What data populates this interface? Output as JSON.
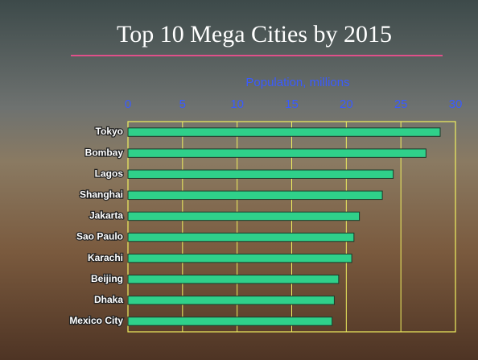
{
  "chart_data": {
    "type": "hbar",
    "title": "Top 10 Mega Cities by 2015",
    "x_label": "Population, millions",
    "categories": [
      "Tokyo",
      "Bombay",
      "Lagos",
      "Shanghai",
      "Jakarta",
      "Sao Paulo",
      "Karachi",
      "Beijing",
      "Dhaka",
      "Mexico City"
    ],
    "values": [
      28.6,
      27.3,
      24.3,
      23.3,
      21.2,
      20.7,
      20.5,
      19.3,
      18.9,
      18.7
    ],
    "color": "#2fd08a",
    "xlim": [
      0,
      30
    ],
    "xticks": [
      0,
      5,
      10,
      15,
      20,
      25,
      30
    ],
    "grid": true
  }
}
